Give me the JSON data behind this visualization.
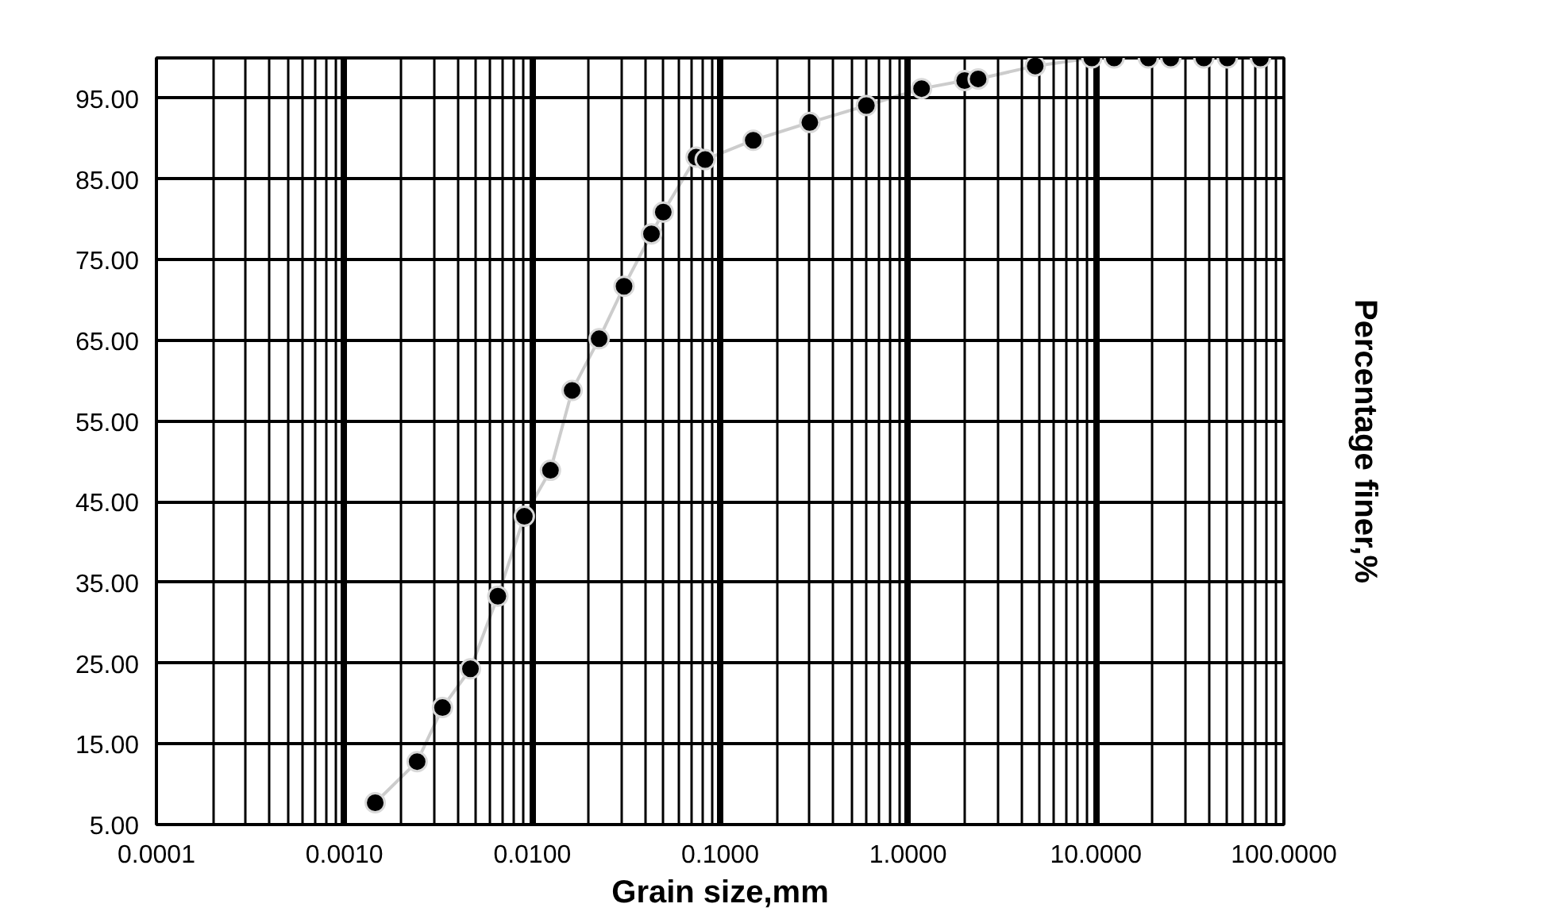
{
  "chart_data": {
    "type": "line",
    "xlabel": "Grain size,mm",
    "ylabel": "Percentage finer,%",
    "log": "x",
    "grid": true,
    "marker": "circle",
    "line_style": "solid",
    "xlim": [
      0.0001,
      100
    ],
    "ylim": [
      5,
      100
    ],
    "xticks": [
      {
        "value": 0.0001,
        "label": "0.0001"
      },
      {
        "value": 0.001,
        "label": "0.0010"
      },
      {
        "value": 0.01,
        "label": "0.0100"
      },
      {
        "value": 0.1,
        "label": "0.1000"
      },
      {
        "value": 1,
        "label": "1.0000"
      },
      {
        "value": 10,
        "label": "10.0000"
      },
      {
        "value": 100,
        "label": "100.0000"
      }
    ],
    "yticks": [
      {
        "value": 5,
        "label": "5.00"
      },
      {
        "value": 15,
        "label": "15.00"
      },
      {
        "value": 25,
        "label": "25.00"
      },
      {
        "value": 35,
        "label": "35.00"
      },
      {
        "value": 45,
        "label": "45.00"
      },
      {
        "value": 55,
        "label": "55.00"
      },
      {
        "value": 65,
        "label": "65.00"
      },
      {
        "value": 75,
        "label": "75.00"
      },
      {
        "value": 85,
        "label": "85.00"
      },
      {
        "value": 95,
        "label": "95.00"
      }
    ],
    "x": [
      0.00146,
      0.00244,
      0.00333,
      0.00469,
      0.00656,
      0.00908,
      0.0125,
      0.0163,
      0.0227,
      0.0308,
      0.0431,
      0.0498,
      0.0745,
      0.0832,
      0.15,
      0.3,
      0.6,
      1.18,
      2.0,
      2.36,
      4.75,
      9.5,
      12.5,
      19,
      25,
      37.5,
      50,
      75
    ],
    "series": [
      {
        "color": "#000000",
        "values": [
          7.7,
          12.8,
          19.5,
          24.3,
          33.3,
          43.2,
          48.9,
          58.8,
          65.2,
          71.7,
          78.2,
          80.9,
          87.7,
          87.4,
          89.8,
          92.0,
          94.1,
          96.2,
          97.2,
          97.4,
          99.0,
          100,
          100,
          100,
          100,
          100,
          100,
          100
        ]
      }
    ]
  }
}
